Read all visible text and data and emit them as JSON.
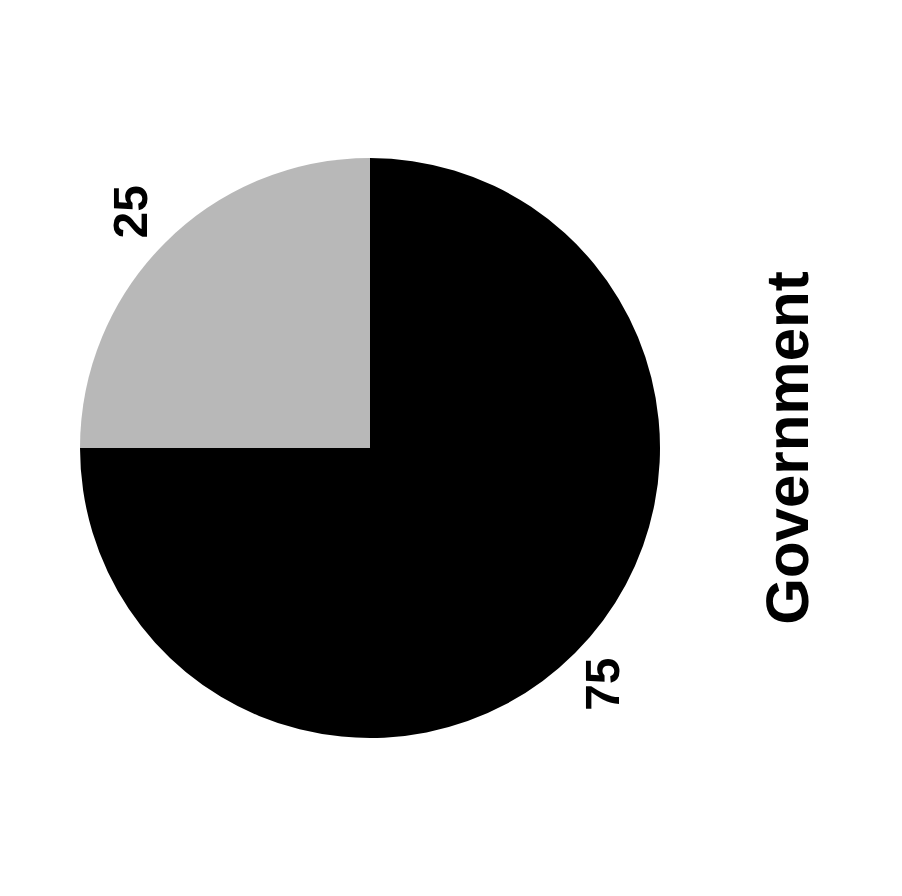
{
  "chart_data": {
    "type": "pie",
    "title": "Government",
    "categories": [
      null,
      null
    ],
    "values": [
      75,
      25
    ],
    "colors": [
      "#000000",
      "#b8b8b8"
    ],
    "data_labels": true,
    "legend": false
  }
}
